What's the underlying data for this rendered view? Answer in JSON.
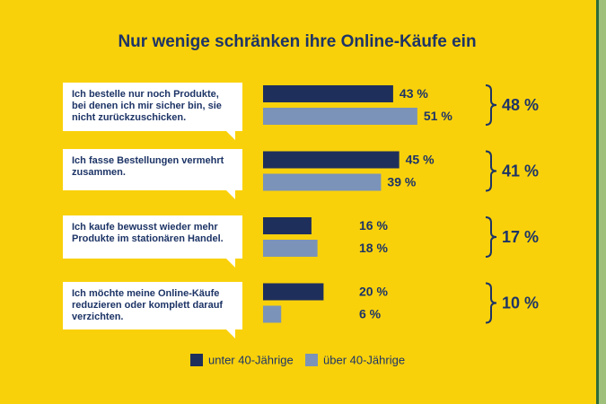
{
  "chart_data": {
    "type": "bar",
    "title": "Nur wenige schränken ihre Online-Käufe ein",
    "categories": [
      "Ich bestelle nur noch Produkte, bei denen ich mir sicher bin, sie nicht zurückzuschicken.",
      "Ich fasse Bestellungen vermehrt zusammen.",
      "Ich kaufe bewusst wieder mehr Produkte im stationären Handel.",
      "Ich möchte meine Online-Käufe reduzieren oder komplett darauf verzichten."
    ],
    "series": [
      {
        "name": "unter 40-Jährige",
        "color": "#1f2f5c",
        "values": [
          43,
          45,
          16,
          20
        ],
        "value_labels": [
          "43 %",
          "45 %",
          "16 %",
          "20 %"
        ]
      },
      {
        "name": "über 40-Jährige",
        "color": "#7b93b8",
        "values": [
          51,
          39,
          18,
          6
        ],
        "value_labels": [
          "51 %",
          "39 %",
          "18 %",
          "6 %"
        ]
      }
    ],
    "totals": {
      "values": [
        48,
        41,
        17,
        10
      ],
      "value_labels": [
        "48 %",
        "41 %",
        "17 %",
        "10 %"
      ]
    }
  }
}
